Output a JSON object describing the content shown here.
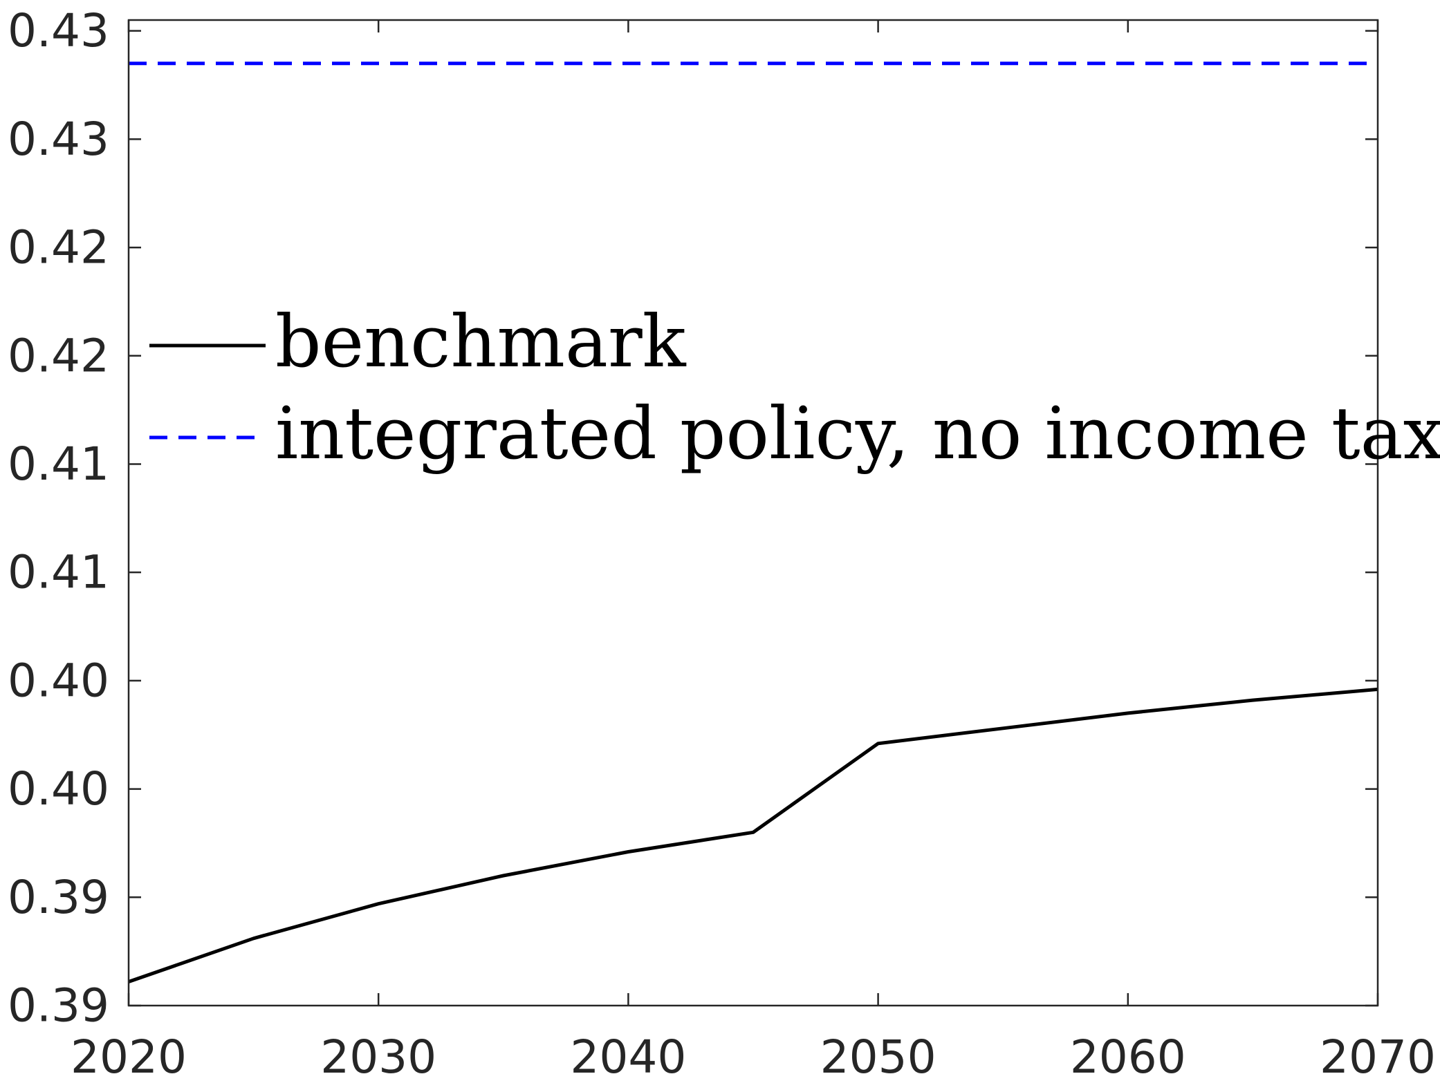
{
  "chart_data": {
    "type": "line",
    "title": "",
    "xlabel": "",
    "ylabel": "",
    "xlim": [
      2020,
      2070
    ],
    "ylim": [
      0.39,
      0.4355
    ],
    "x_ticks": [
      2020,
      2030,
      2040,
      2050,
      2060,
      2070
    ],
    "x_tick_labels": [
      "2020",
      "2030",
      "2040",
      "2050",
      "2060",
      "2070"
    ],
    "y_ticks": [
      0.39,
      0.395,
      0.4,
      0.405,
      0.41,
      0.415,
      0.42,
      0.425,
      0.43,
      0.435
    ],
    "y_tick_labels": [
      "0.39",
      "0.39",
      "0.40",
      "0.40",
      "0.41",
      "0.41",
      "0.42",
      "0.42",
      "0.43",
      "0.43"
    ],
    "grid": false,
    "legend_position": "middle-left",
    "series": [
      {
        "name": "benchmark",
        "color": "#000000",
        "dash": "solid",
        "x": [
          2020,
          2025,
          2030,
          2035,
          2040,
          2045,
          2050,
          2055,
          2060,
          2065,
          2070
        ],
        "y": [
          0.3911,
          0.3931,
          0.3947,
          0.396,
          0.3971,
          0.398,
          0.4021,
          0.4028,
          0.4035,
          0.4041,
          0.4046
        ]
      },
      {
        "name": "integrated policy, no income tax",
        "color": "#0000ff",
        "dash": "dashed",
        "x": [
          2020,
          2070
        ],
        "y": [
          0.4335,
          0.4335
        ]
      }
    ]
  }
}
